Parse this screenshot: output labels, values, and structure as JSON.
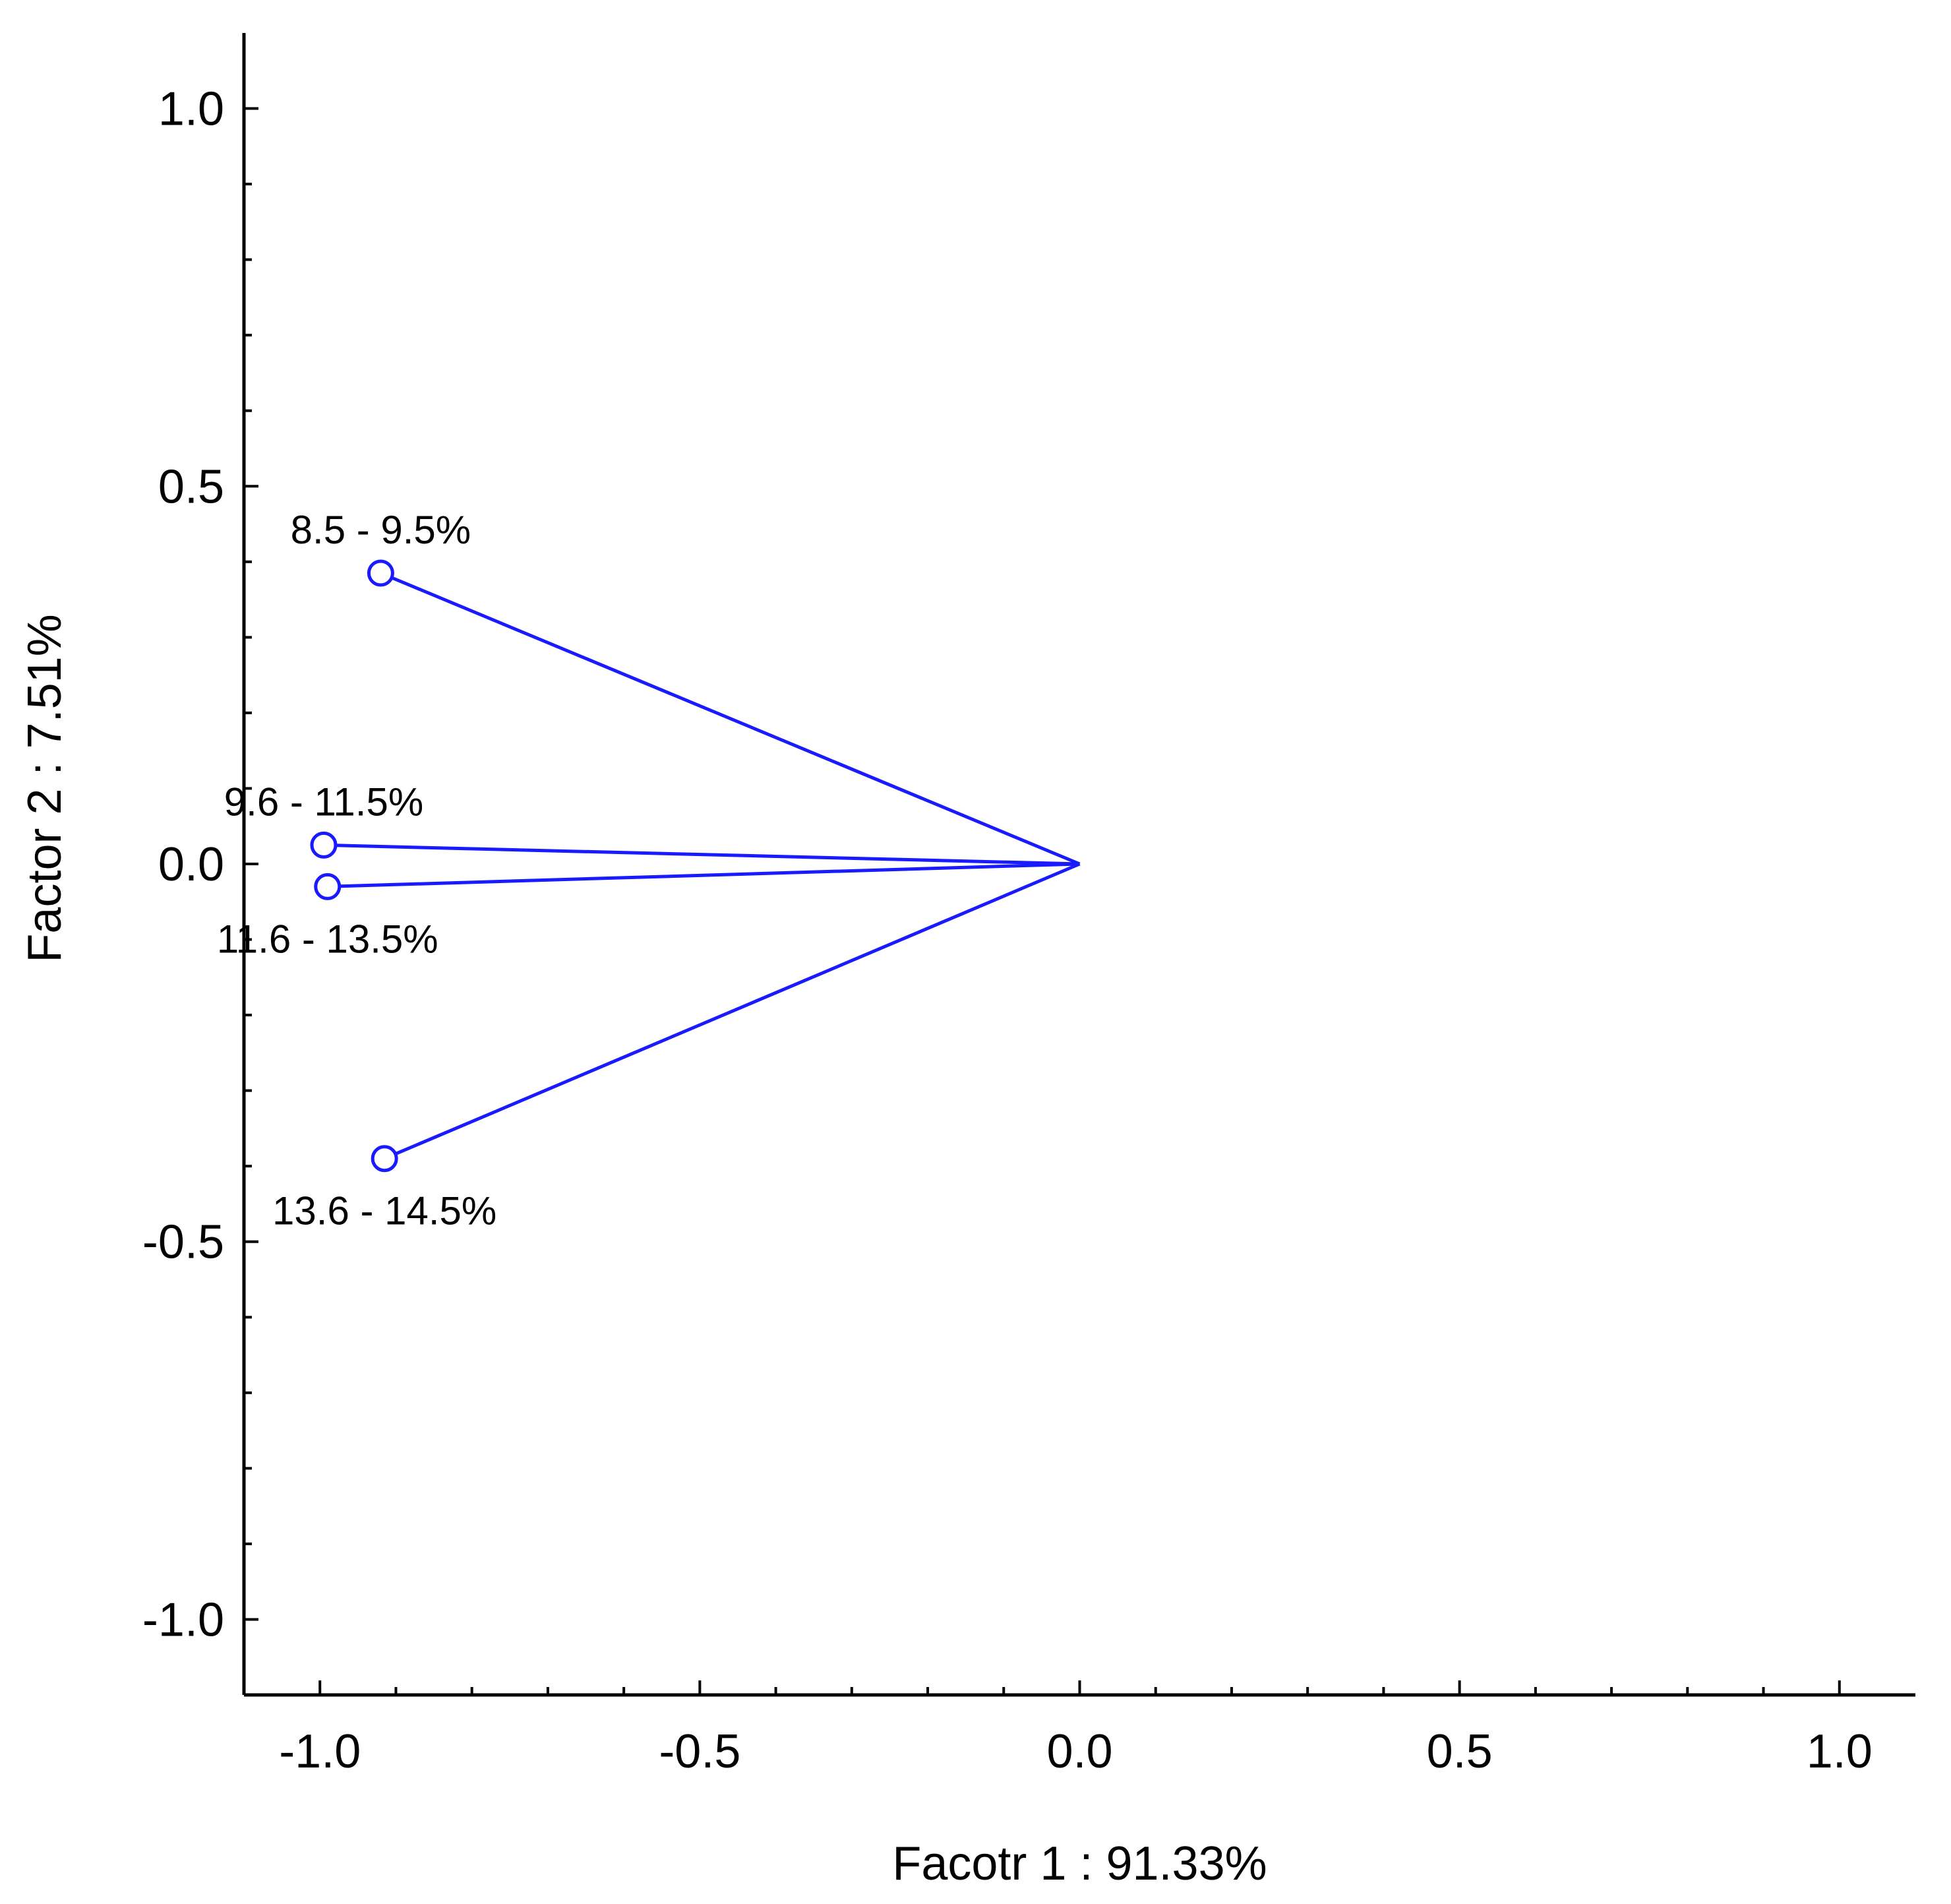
{
  "chart_data": {
    "type": "scatter",
    "title": "",
    "xlabel": "Facotr 1 : 91.33%",
    "ylabel": "Factor 2 :  7.51%",
    "xlim": [
      -1.1,
      1.1
    ],
    "ylim": [
      -1.1,
      1.1
    ],
    "x_ticks": [
      -1.0,
      -0.5,
      0.0,
      0.5,
      1.0
    ],
    "x_tick_labels": [
      "-1.0",
      "-0.5",
      "0.0",
      "0.5",
      "1.0"
    ],
    "y_ticks": [
      1.0,
      0.5,
      0.0,
      -0.5,
      -1.0
    ],
    "y_tick_labels": [
      "1.0",
      "0.5",
      "0.0",
      "-0.5",
      "-1.0"
    ],
    "minor_tick_step": 0.1,
    "grid": false,
    "legend": "none",
    "vector_origin": [
      0.0,
      0.0
    ],
    "series_color": "#1a1aff",
    "points": [
      {
        "label": "8.5 - 9.5%",
        "x": -0.92,
        "y": 0.385,
        "label_position": "above"
      },
      {
        "label": "9.6 - 11.5%",
        "x": -0.995,
        "y": 0.025,
        "label_position": "above"
      },
      {
        "label": "11.6 - 13.5%",
        "x": -0.99,
        "y": -0.03,
        "label_position": "below"
      },
      {
        "label": "13.6 - 14.5%",
        "x": -0.915,
        "y": -0.39,
        "label_position": "below"
      }
    ]
  }
}
